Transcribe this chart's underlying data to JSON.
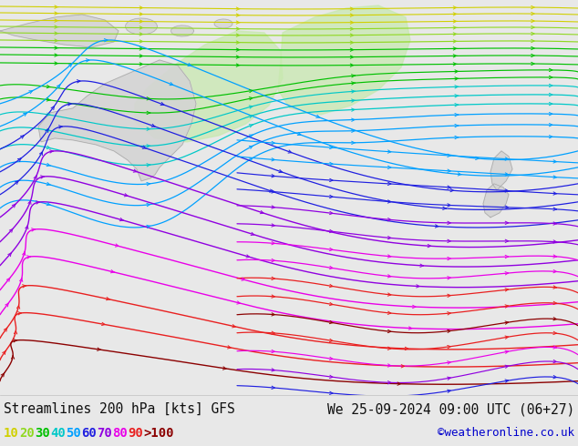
{
  "title_left": "Streamlines 200 hPa [kts] GFS",
  "title_right": "We 25-09-2024 09:00 UTC (06+27)",
  "credit": "©weatheronline.co.uk",
  "bg_color": "#e8e8e8",
  "ocean_color": "#e0e4e8",
  "land_color": "#d4d4d4",
  "land_outline": "#a8a8a8",
  "green_shade": "#c8e8b0",
  "legend_values": [
    "10",
    "20",
    "30",
    "40",
    "50",
    "60",
    "70",
    "80",
    "90",
    ">100"
  ],
  "legend_colors": [
    "#d0d000",
    "#90d820",
    "#00c000",
    "#00c8c8",
    "#00a0ff",
    "#2020e0",
    "#9000e0",
    "#e800e8",
    "#e82020",
    "#8b0000"
  ],
  "font_size_title": 10.5,
  "font_size_legend": 10,
  "figsize": [
    6.34,
    4.9
  ],
  "dpi": 100
}
